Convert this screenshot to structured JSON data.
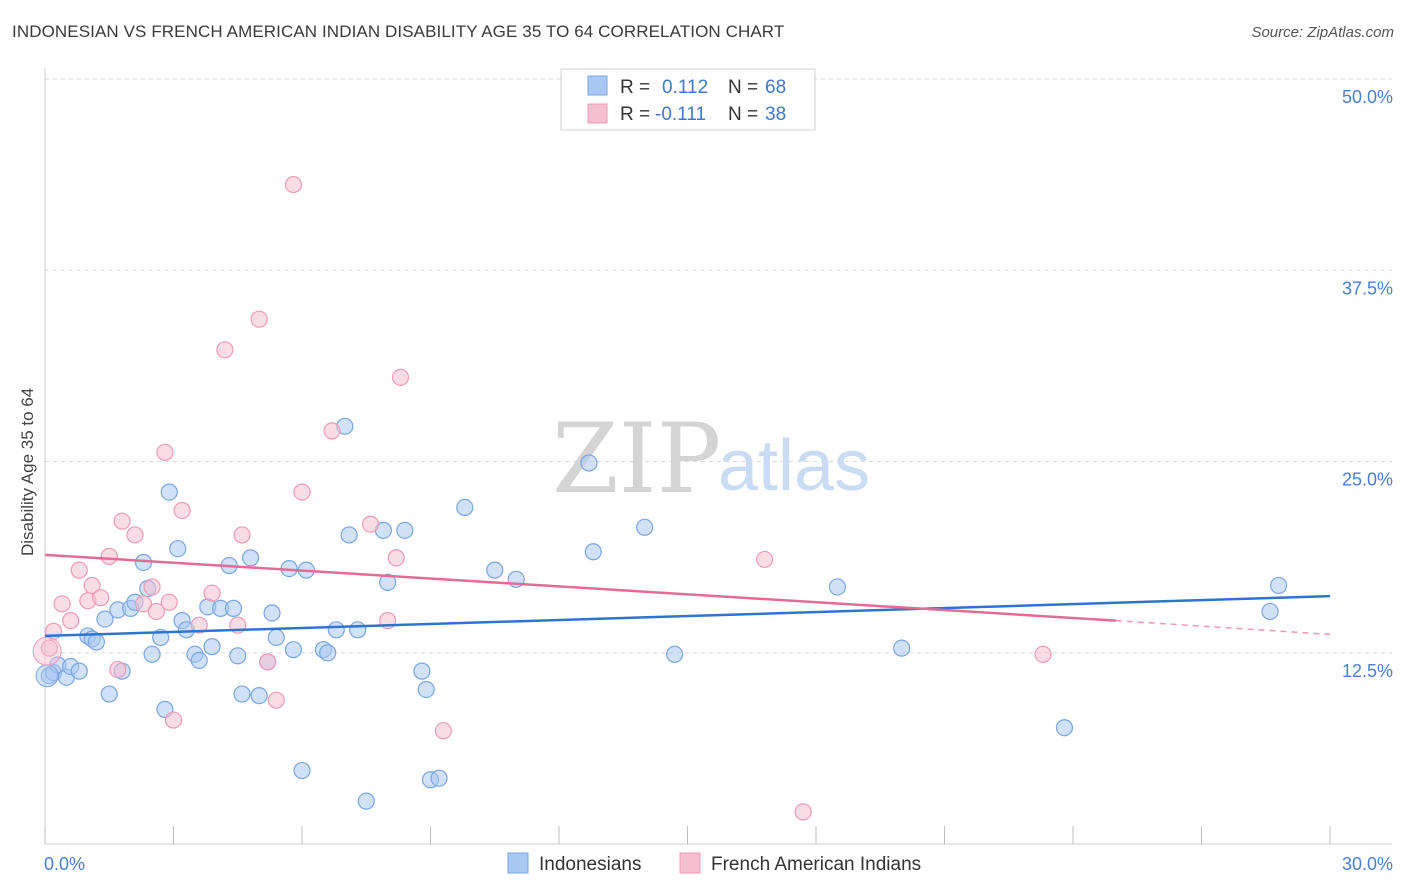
{
  "title": "INDONESIAN VS FRENCH AMERICAN INDIAN DISABILITY AGE 35 TO 64 CORRELATION CHART",
  "source": "Source: ZipAtlas.com",
  "watermark": {
    "zip": "ZIP",
    "atlas": "atlas"
  },
  "colors": {
    "blue_fill": "#a9c8f2",
    "blue_stroke": "#7aa6e0",
    "blue_line": "#2f74d0",
    "pink_fill": "#f6bfd0",
    "pink_stroke": "#ee9bb6",
    "pink_line": "#e56b96",
    "grid": "#d9d9d9",
    "axis_text": "#4a7fd0"
  },
  "legend": {
    "rows": [
      {
        "r_label": "R =",
        "r_value": "0.112",
        "n_label": "N =",
        "n_value": "68"
      },
      {
        "r_label": "R =",
        "r_value": "-0.111",
        "n_label": "N =",
        "n_value": "38"
      }
    ]
  },
  "bottom_legend": [
    "Indonesians",
    "French American Indians"
  ],
  "chart_data": {
    "type": "scatter",
    "title": "INDONESIAN VS FRENCH AMERICAN INDIAN DISABILITY AGE 35 TO 64 CORRELATION CHART",
    "xlabel": "",
    "ylabel": "Disability Age 35 to 64",
    "xlim": [
      0,
      30
    ],
    "ylim": [
      0,
      50
    ],
    "x_tick_labels": [
      "0.0%",
      "30.0%"
    ],
    "y_ticks": [
      12.5,
      25.0,
      37.5,
      50.0
    ],
    "y_tick_labels": [
      "12.5%",
      "25.0%",
      "37.5%",
      "50.0%"
    ],
    "series": [
      {
        "name": "Indonesians",
        "r": 0.112,
        "n": 68,
        "trend": {
          "x": [
            0,
            30
          ],
          "y": [
            13.6,
            16.2
          ]
        },
        "points": [
          [
            0.1,
            11.0
          ],
          [
            0.2,
            11.2
          ],
          [
            0.3,
            11.7
          ],
          [
            0.5,
            10.9
          ],
          [
            0.6,
            11.6
          ],
          [
            0.8,
            11.3
          ],
          [
            1.0,
            13.6
          ],
          [
            1.1,
            13.4
          ],
          [
            1.2,
            13.2
          ],
          [
            1.4,
            14.7
          ],
          [
            1.5,
            9.8
          ],
          [
            1.7,
            15.3
          ],
          [
            1.8,
            11.3
          ],
          [
            2.0,
            15.4
          ],
          [
            2.1,
            15.8
          ],
          [
            2.3,
            18.4
          ],
          [
            2.4,
            16.7
          ],
          [
            2.5,
            12.4
          ],
          [
            2.7,
            13.5
          ],
          [
            2.8,
            8.8
          ],
          [
            2.9,
            23.0
          ],
          [
            3.1,
            19.3
          ],
          [
            3.2,
            14.6
          ],
          [
            3.3,
            14.0
          ],
          [
            3.5,
            12.4
          ],
          [
            3.6,
            12.0
          ],
          [
            3.8,
            15.5
          ],
          [
            3.9,
            12.9
          ],
          [
            4.1,
            15.4
          ],
          [
            4.3,
            18.2
          ],
          [
            4.4,
            15.4
          ],
          [
            4.5,
            12.3
          ],
          [
            4.6,
            9.8
          ],
          [
            4.8,
            18.7
          ],
          [
            5.0,
            9.7
          ],
          [
            5.2,
            11.9
          ],
          [
            5.3,
            15.1
          ],
          [
            5.4,
            13.5
          ],
          [
            5.7,
            18.0
          ],
          [
            5.8,
            12.7
          ],
          [
            6.0,
            4.8
          ],
          [
            6.1,
            17.9
          ],
          [
            6.5,
            12.7
          ],
          [
            6.6,
            12.5
          ],
          [
            6.8,
            14.0
          ],
          [
            7.0,
            27.3
          ],
          [
            7.1,
            20.2
          ],
          [
            7.3,
            14.0
          ],
          [
            7.5,
            2.8
          ],
          [
            7.9,
            20.5
          ],
          [
            8.0,
            17.1
          ],
          [
            8.4,
            20.5
          ],
          [
            8.8,
            11.3
          ],
          [
            8.9,
            10.1
          ],
          [
            9.0,
            4.2
          ],
          [
            9.2,
            4.3
          ],
          [
            9.8,
            22.0
          ],
          [
            10.5,
            17.9
          ],
          [
            11.0,
            17.3
          ],
          [
            12.7,
            24.9
          ],
          [
            12.8,
            19.1
          ],
          [
            14.0,
            20.7
          ],
          [
            14.7,
            12.4
          ],
          [
            18.5,
            16.8
          ],
          [
            20.0,
            12.8
          ],
          [
            23.8,
            7.6
          ],
          [
            28.6,
            15.2
          ],
          [
            28.8,
            16.9
          ]
        ]
      },
      {
        "name": "French American Indians",
        "r": -0.111,
        "n": 38,
        "trend": {
          "x": [
            0,
            25
          ],
          "y": [
            18.9,
            14.6
          ]
        },
        "trend_dashed": {
          "x": [
            25,
            30
          ],
          "y": [
            14.6,
            13.7
          ]
        },
        "points": [
          [
            0.1,
            12.8
          ],
          [
            0.2,
            13.9
          ],
          [
            0.4,
            15.7
          ],
          [
            0.6,
            14.6
          ],
          [
            0.8,
            17.9
          ],
          [
            1.0,
            15.9
          ],
          [
            1.1,
            16.9
          ],
          [
            1.3,
            16.1
          ],
          [
            1.5,
            18.8
          ],
          [
            1.7,
            11.4
          ],
          [
            1.8,
            21.1
          ],
          [
            2.1,
            20.2
          ],
          [
            2.3,
            15.7
          ],
          [
            2.5,
            16.8
          ],
          [
            2.6,
            15.2
          ],
          [
            2.8,
            25.6
          ],
          [
            2.9,
            15.8
          ],
          [
            3.0,
            8.1
          ],
          [
            3.2,
            21.8
          ],
          [
            3.6,
            14.3
          ],
          [
            3.9,
            16.4
          ],
          [
            4.2,
            32.3
          ],
          [
            4.5,
            14.3
          ],
          [
            4.6,
            20.2
          ],
          [
            5.0,
            34.3
          ],
          [
            5.2,
            11.9
          ],
          [
            5.4,
            9.4
          ],
          [
            5.8,
            43.1
          ],
          [
            6.0,
            23.0
          ],
          [
            6.7,
            27.0
          ],
          [
            7.6,
            20.9
          ],
          [
            8.0,
            14.6
          ],
          [
            8.2,
            18.7
          ],
          [
            8.3,
            30.5
          ],
          [
            9.3,
            7.4
          ],
          [
            16.8,
            18.6
          ],
          [
            17.7,
            2.1
          ],
          [
            23.3,
            12.4
          ]
        ]
      }
    ]
  }
}
